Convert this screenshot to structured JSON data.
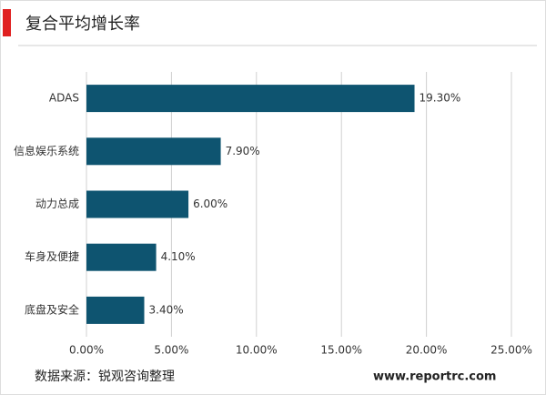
{
  "chart_data": {
    "type": "bar",
    "orientation": "horizontal",
    "title": "复合平均增长率",
    "categories": [
      "ADAS",
      "信息娱乐系统",
      "动力总成",
      "车身及便捷",
      "底盘及安全"
    ],
    "values": [
      19.3,
      7.9,
      6.0,
      4.1,
      3.4
    ],
    "value_labels": [
      "19.30%",
      "7.90%",
      "6.00%",
      "4.10%",
      "3.40%"
    ],
    "color": "#0e5470",
    "xlim": [
      0,
      25
    ],
    "xticks": [
      {
        "value": 0,
        "label": "0.00%"
      },
      {
        "value": 5,
        "label": "5.00%"
      },
      {
        "value": 10,
        "label": "10.00%"
      },
      {
        "value": 15,
        "label": "15.00%"
      },
      {
        "value": 20,
        "label": "20.00%"
      },
      {
        "value": 25,
        "label": "25.00%"
      }
    ],
    "grid": true,
    "source": "数据来源：锐观咨询整理",
    "website": "www.reportrc.com"
  }
}
